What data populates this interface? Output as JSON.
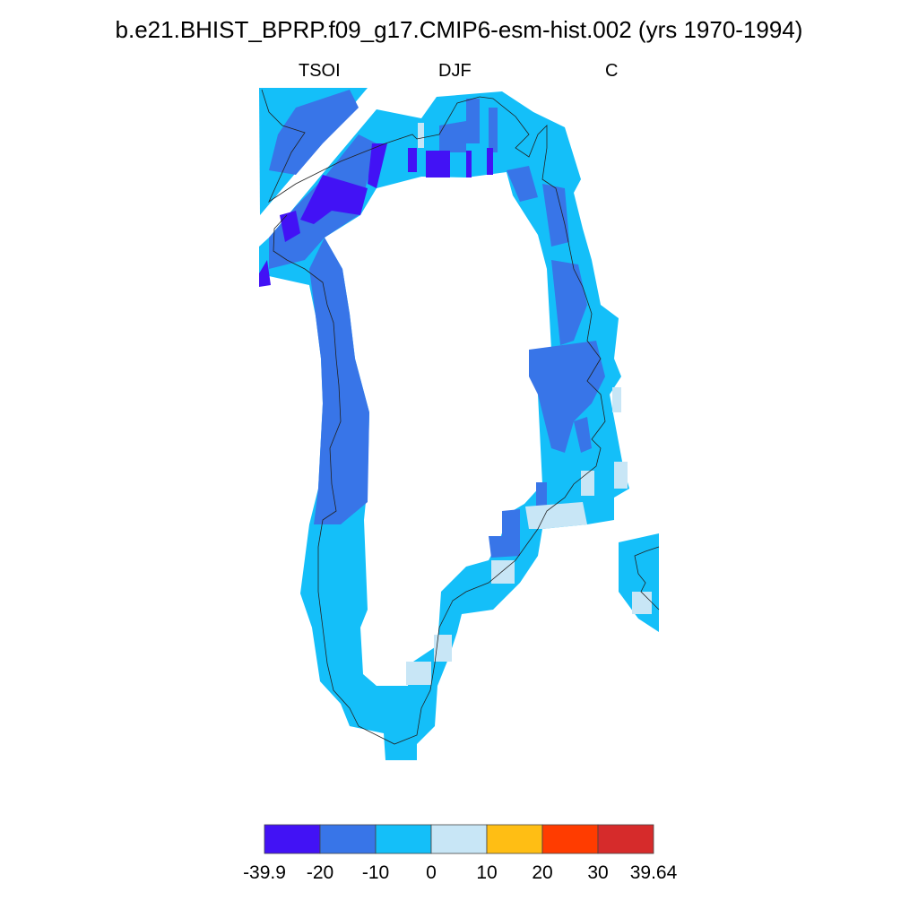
{
  "title": "b.e21.BHIST_BPRP.f09_g17.CMIP6-esm-hist.002 (yrs 1970-1994)",
  "left_label": "TSOI",
  "center_label": "DJF",
  "right_label": "C",
  "colorbar": {
    "labels": [
      "-39.9",
      "-20",
      "-10",
      "0",
      "10",
      "20",
      "30",
      "39.64"
    ],
    "colors": [
      "#4212f5",
      "#3875e8",
      "#14bff9",
      "#c8e6f6",
      "#ffbe14",
      "#ff3c00",
      "#d62b2b"
    ]
  }
}
